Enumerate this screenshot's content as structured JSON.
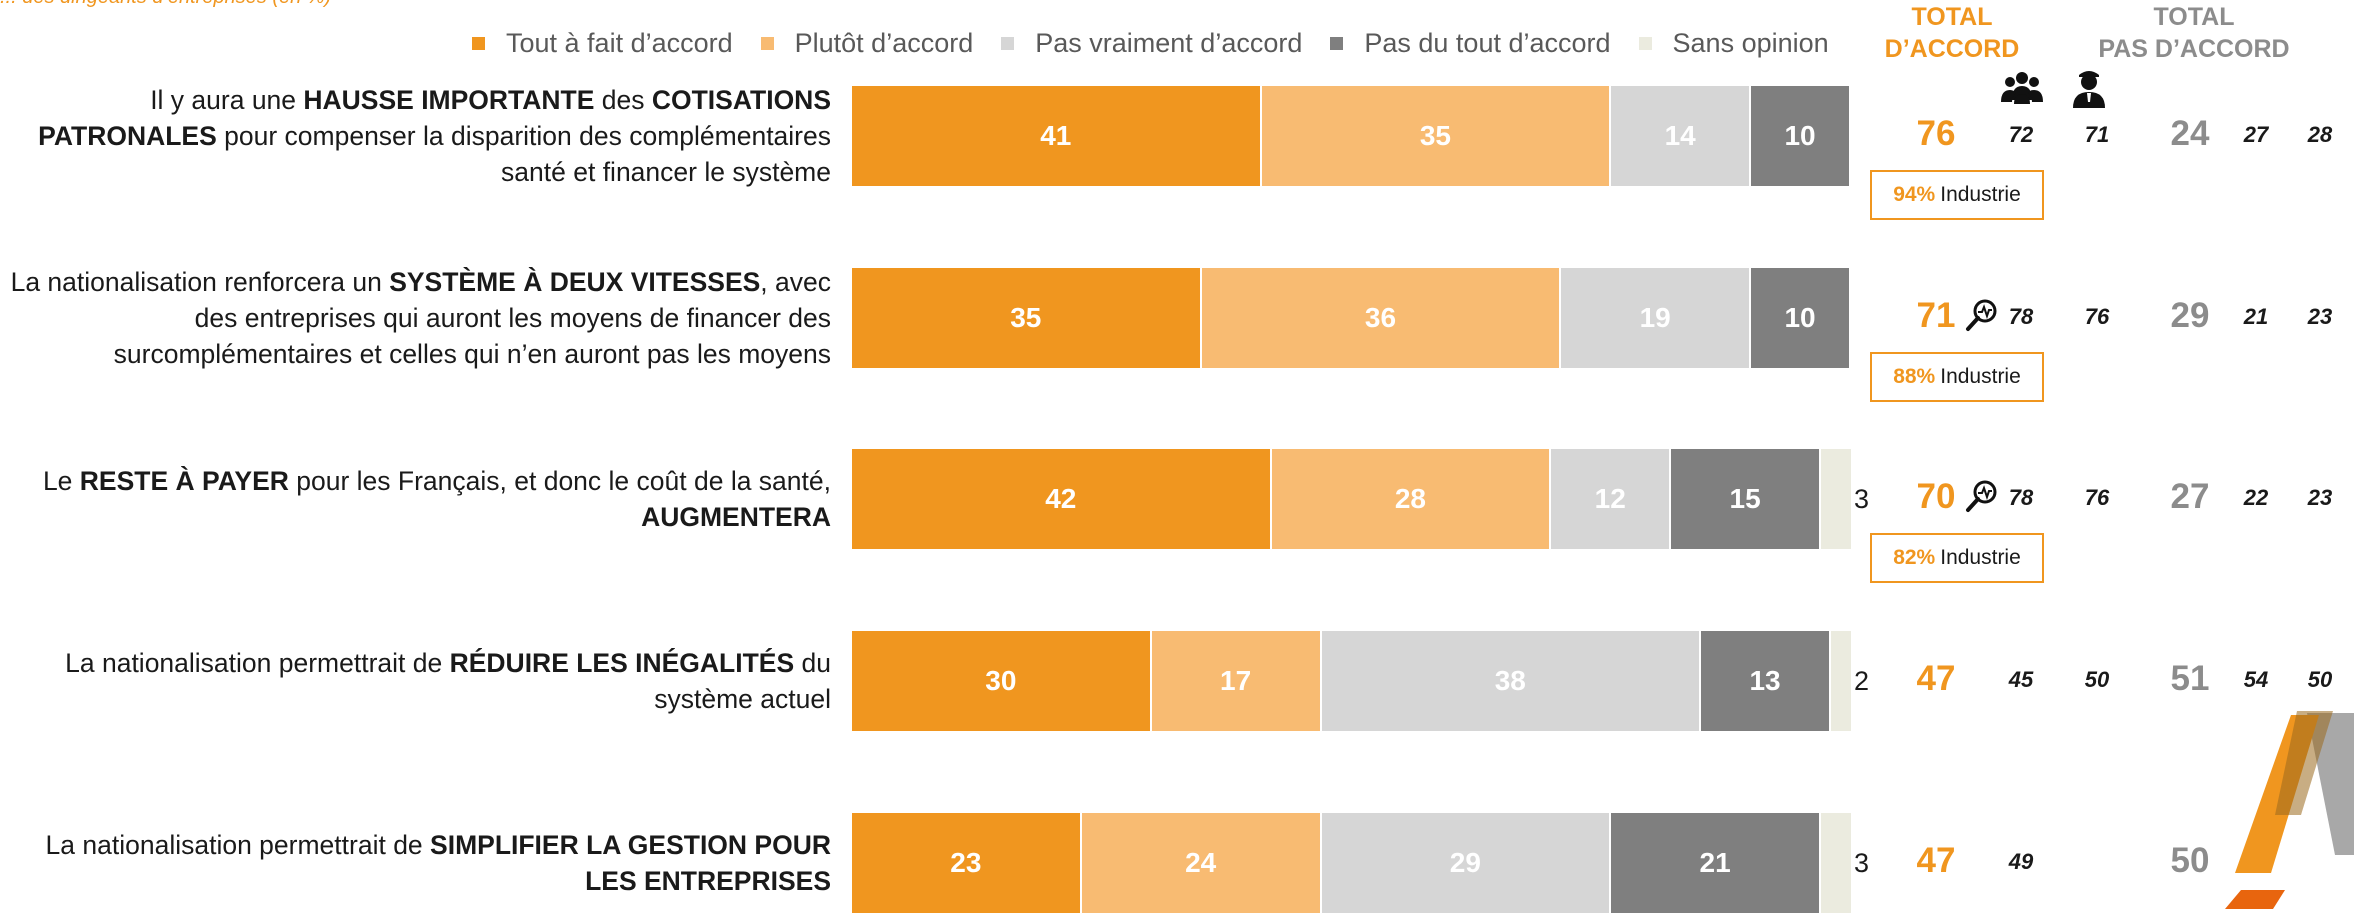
{
  "header": {
    "top_snippet": "... des dirigeants d’entreprises (en %)",
    "total_agree_line1": "TOTAL",
    "total_agree_line2": "D’ACCORD",
    "total_disagree_line1": "TOTAL",
    "total_disagree_line2": "PAS D’ACCORD"
  },
  "legend": [
    {
      "label": "Tout à fait d’accord",
      "color": "#f0961f"
    },
    {
      "label": "Plutôt d’accord",
      "color": "#f8bb72"
    },
    {
      "label": "Pas vraiment d’accord",
      "color": "#d6d6d6"
    },
    {
      "label": "Pas du tout d’accord",
      "color": "#7f7f7f"
    },
    {
      "label": "Sans opinion",
      "color": "#ebebdf"
    }
  ],
  "icons": {
    "group": "group-icon",
    "person": "person-icon",
    "magnifier": "magnifier-icon"
  },
  "rows": [
    {
      "label_parts": [
        {
          "t": "Il y aura une ",
          "b": false
        },
        {
          "t": "HAUSSE IMPORTANTE",
          "b": true
        },
        {
          "t": " des ",
          "b": false
        },
        {
          "t": "COTISATIONS PATRONALES",
          "b": true
        },
        {
          "t": " pour compenser la disparition des complémentaires santé et financer le système",
          "b": false
        }
      ],
      "total_agree": "76",
      "agree_group": "72",
      "agree_person": "71",
      "agree_magnifier": false,
      "industry_pct": "94%",
      "industry_label": "Industrie",
      "total_disagree": "24",
      "dis_group": "27",
      "dis_person": "28"
    },
    {
      "label_parts": [
        {
          "t": "La nationalisation renforcera un ",
          "b": false
        },
        {
          "t": "SYSTÈME À DEUX VITESSES",
          "b": true
        },
        {
          "t": ", avec des entreprises qui auront les moyens de financer des surcomplémentaires et celles qui n’en auront pas les moyens",
          "b": false
        }
      ],
      "total_agree": "71",
      "agree_group": "78",
      "agree_person": "76",
      "agree_magnifier": true,
      "industry_pct": "88%",
      "industry_label": "Industrie",
      "total_disagree": "29",
      "dis_group": "21",
      "dis_person": "23"
    },
    {
      "label_parts": [
        {
          "t": "Le ",
          "b": false
        },
        {
          "t": "RESTE À PAYER",
          "b": true
        },
        {
          "t": " pour les Français, et donc le coût de la santé, ",
          "b": false
        },
        {
          "t": "AUGMENTERA",
          "b": true
        }
      ],
      "total_agree": "70",
      "agree_group": "78",
      "agree_person": "76",
      "agree_magnifier": true,
      "industry_pct": "82%",
      "industry_label": "Industrie",
      "total_disagree": "27",
      "dis_group": "22",
      "dis_person": "23"
    },
    {
      "label_parts": [
        {
          "t": "La nationalisation permettrait de ",
          "b": false
        },
        {
          "t": "RÉDUIRE LES INÉGALITÉS",
          "b": true
        },
        {
          "t": " du système actuel",
          "b": false
        }
      ],
      "total_agree": "47",
      "agree_group": "45",
      "agree_person": "50",
      "agree_magnifier": false,
      "industry_pct": "",
      "industry_label": "",
      "total_disagree": "51",
      "dis_group": "54",
      "dis_person": "50"
    },
    {
      "label_parts": [
        {
          "t": "La nationalisation permettrait de ",
          "b": false
        },
        {
          "t": "SIMPLIFIER LA GESTION POUR LES ENTREPRISES",
          "b": true
        }
      ],
      "total_agree": "47",
      "agree_group": "49",
      "agree_person": "",
      "agree_magnifier": false,
      "industry_pct": "",
      "industry_label": "",
      "total_disagree": "50",
      "dis_group": "50",
      "dis_person": ""
    }
  ],
  "chart_data": {
    "type": "bar",
    "orientation": "horizontal",
    "stacked": true,
    "title": "",
    "xlabel": "",
    "ylabel": "",
    "xlim": [
      0,
      100
    ],
    "legend_placement": "top",
    "categories": [
      "Il y aura une HAUSSE IMPORTANTE des COTISATIONS PATRONALES pour compenser la disparition des complémentaires santé et financer le système",
      "La nationalisation renforcera un SYSTÈME À DEUX VITESSES, avec des entreprises qui auront les moyens de financer des surcomplémentaires et celles qui n’en auront pas les moyens",
      "Le RESTE À PAYER pour les Français, et donc le coût de la santé, AUGMENTERA",
      "La nationalisation permettrait de RÉDUIRE LES INÉGALITÉS du système actuel",
      "La nationalisation permettrait de SIMPLIFIER LA GESTION POUR LES ENTREPRISES"
    ],
    "series": [
      {
        "name": "Tout à fait d’accord",
        "color": "#f0961f",
        "values": [
          41,
          35,
          42,
          30,
          23
        ]
      },
      {
        "name": "Plutôt d’accord",
        "color": "#f8bb72",
        "values": [
          35,
          36,
          28,
          17,
          24
        ]
      },
      {
        "name": "Pas vraiment d’accord",
        "color": "#d6d6d6",
        "values": [
          14,
          19,
          12,
          38,
          29
        ]
      },
      {
        "name": "Pas du tout d’accord",
        "color": "#7f7f7f",
        "values": [
          10,
          10,
          15,
          13,
          21
        ]
      },
      {
        "name": "Sans opinion",
        "color": "#ebebdf",
        "values": [
          0,
          0,
          3,
          2,
          3
        ]
      }
    ]
  }
}
